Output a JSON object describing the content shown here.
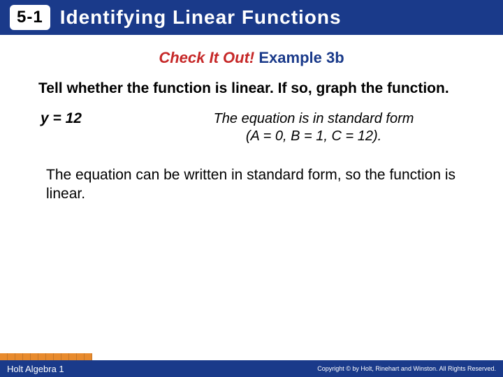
{
  "header": {
    "section": "5-1",
    "title": "Identifying Linear Functions",
    "header_bg": "#1a3a8a",
    "title_color": "#ffffff"
  },
  "subtitle": {
    "check": "Check It Out!",
    "example": "Example 3b",
    "check_color": "#c62828",
    "example_color": "#1a3a8a"
  },
  "prompt": "Tell whether the function is linear. If so, graph the function.",
  "equation": "y = 12",
  "explanation_line1": "The equation is in standard form",
  "explanation_line2": "(A = 0, B = 1, C = 12).",
  "conclusion": "The equation can be written in standard form, so the function is linear.",
  "footer": {
    "left": "Holt Algebra 1",
    "right": "Copyright © by Holt, Rinehart and Winston. All Rights Reserved."
  },
  "style": {
    "orange_accent": "#e88b2e",
    "body_bg": "#ffffff"
  }
}
